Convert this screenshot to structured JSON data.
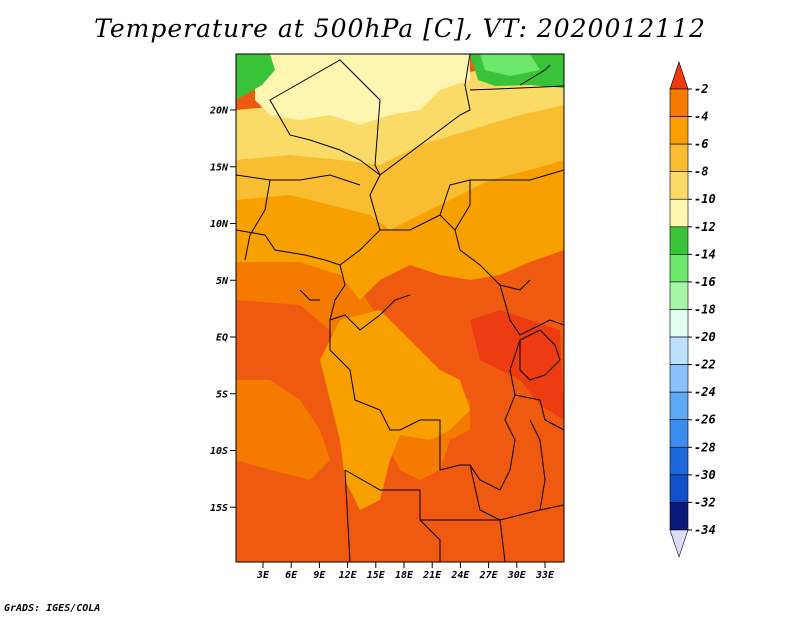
{
  "title": "Temperature at 500hPa [C], VT: 2020012112",
  "footer": "GrADS: IGES/COLA",
  "map": {
    "lat_ticks": [
      {
        "lat": 20,
        "label": "20N"
      },
      {
        "lat": 15,
        "label": "15N"
      },
      {
        "lat": 10,
        "label": "10N"
      },
      {
        "lat": 5,
        "label": "5N"
      },
      {
        "lat": 0,
        "label": "EQ"
      },
      {
        "lat": -5,
        "label": "5S"
      },
      {
        "lat": -10,
        "label": "10S"
      },
      {
        "lat": -15,
        "label": "15S"
      }
    ],
    "lon_ticks": [
      {
        "lon": 3,
        "label": "3E"
      },
      {
        "lon": 6,
        "label": "6E"
      },
      {
        "lon": 9,
        "label": "9E"
      },
      {
        "lon": 12,
        "label": "12E"
      },
      {
        "lon": 15,
        "label": "15E"
      },
      {
        "lon": 18,
        "label": "18E"
      },
      {
        "lon": 21,
        "label": "21E"
      },
      {
        "lon": 24,
        "label": "24E"
      },
      {
        "lon": 27,
        "label": "27E"
      },
      {
        "lon": 30,
        "label": "30E"
      },
      {
        "lon": 33,
        "label": "33E"
      }
    ]
  },
  "colorbar": {
    "label_values": [
      "-2",
      "-4",
      "-6",
      "-8",
      "-10",
      "-12",
      "-14",
      "-16",
      "-18",
      "-20",
      "-22",
      "-24",
      "-26",
      "-28",
      "-30",
      "-32",
      "-34"
    ],
    "colors": [
      "#f05010",
      "#f57a00",
      "#f8a000",
      "#f9bd32",
      "#fbdb68",
      "#fdf5b0",
      "#39c339",
      "#6de86d",
      "#a5f6a5",
      "#e0fdf2",
      "#bde0ff",
      "#8cc2fb",
      "#5ea9f5",
      "#3b8ded",
      "#1e68dc",
      "#1050c8",
      "#0b1a7a"
    ],
    "top_color": "#f03a0f",
    "bottom_color": "#dcdcf8"
  },
  "colors": {
    "t_m3": "#ee3c12",
    "t_m5": "#f05a10",
    "t_m7": "#f57a00",
    "t_m9": "#f8a000",
    "t_m11": "#f9bd32",
    "t_m12": "#fbdb68",
    "t_m13": "#fdf5b0",
    "t_m14": "#39c339",
    "t_m15": "#6de86d"
  }
}
